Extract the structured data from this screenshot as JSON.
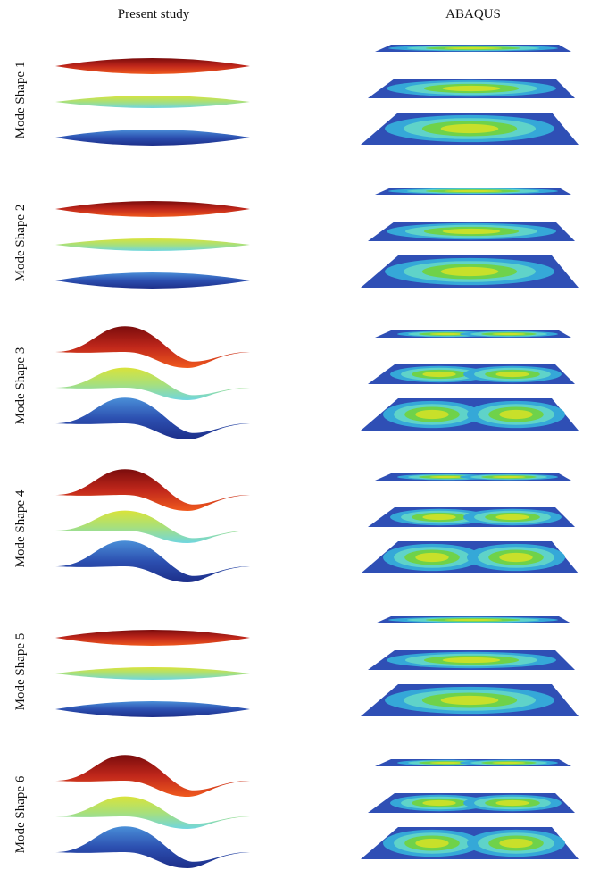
{
  "columns": [
    "Present study",
    "ABAQUS"
  ],
  "rows": [
    "Mode Shape 1",
    "Mode Shape 2",
    "Mode Shape 3",
    "Mode Shape 4",
    "Mode Shape 5",
    "Mode Shape 6"
  ]
}
